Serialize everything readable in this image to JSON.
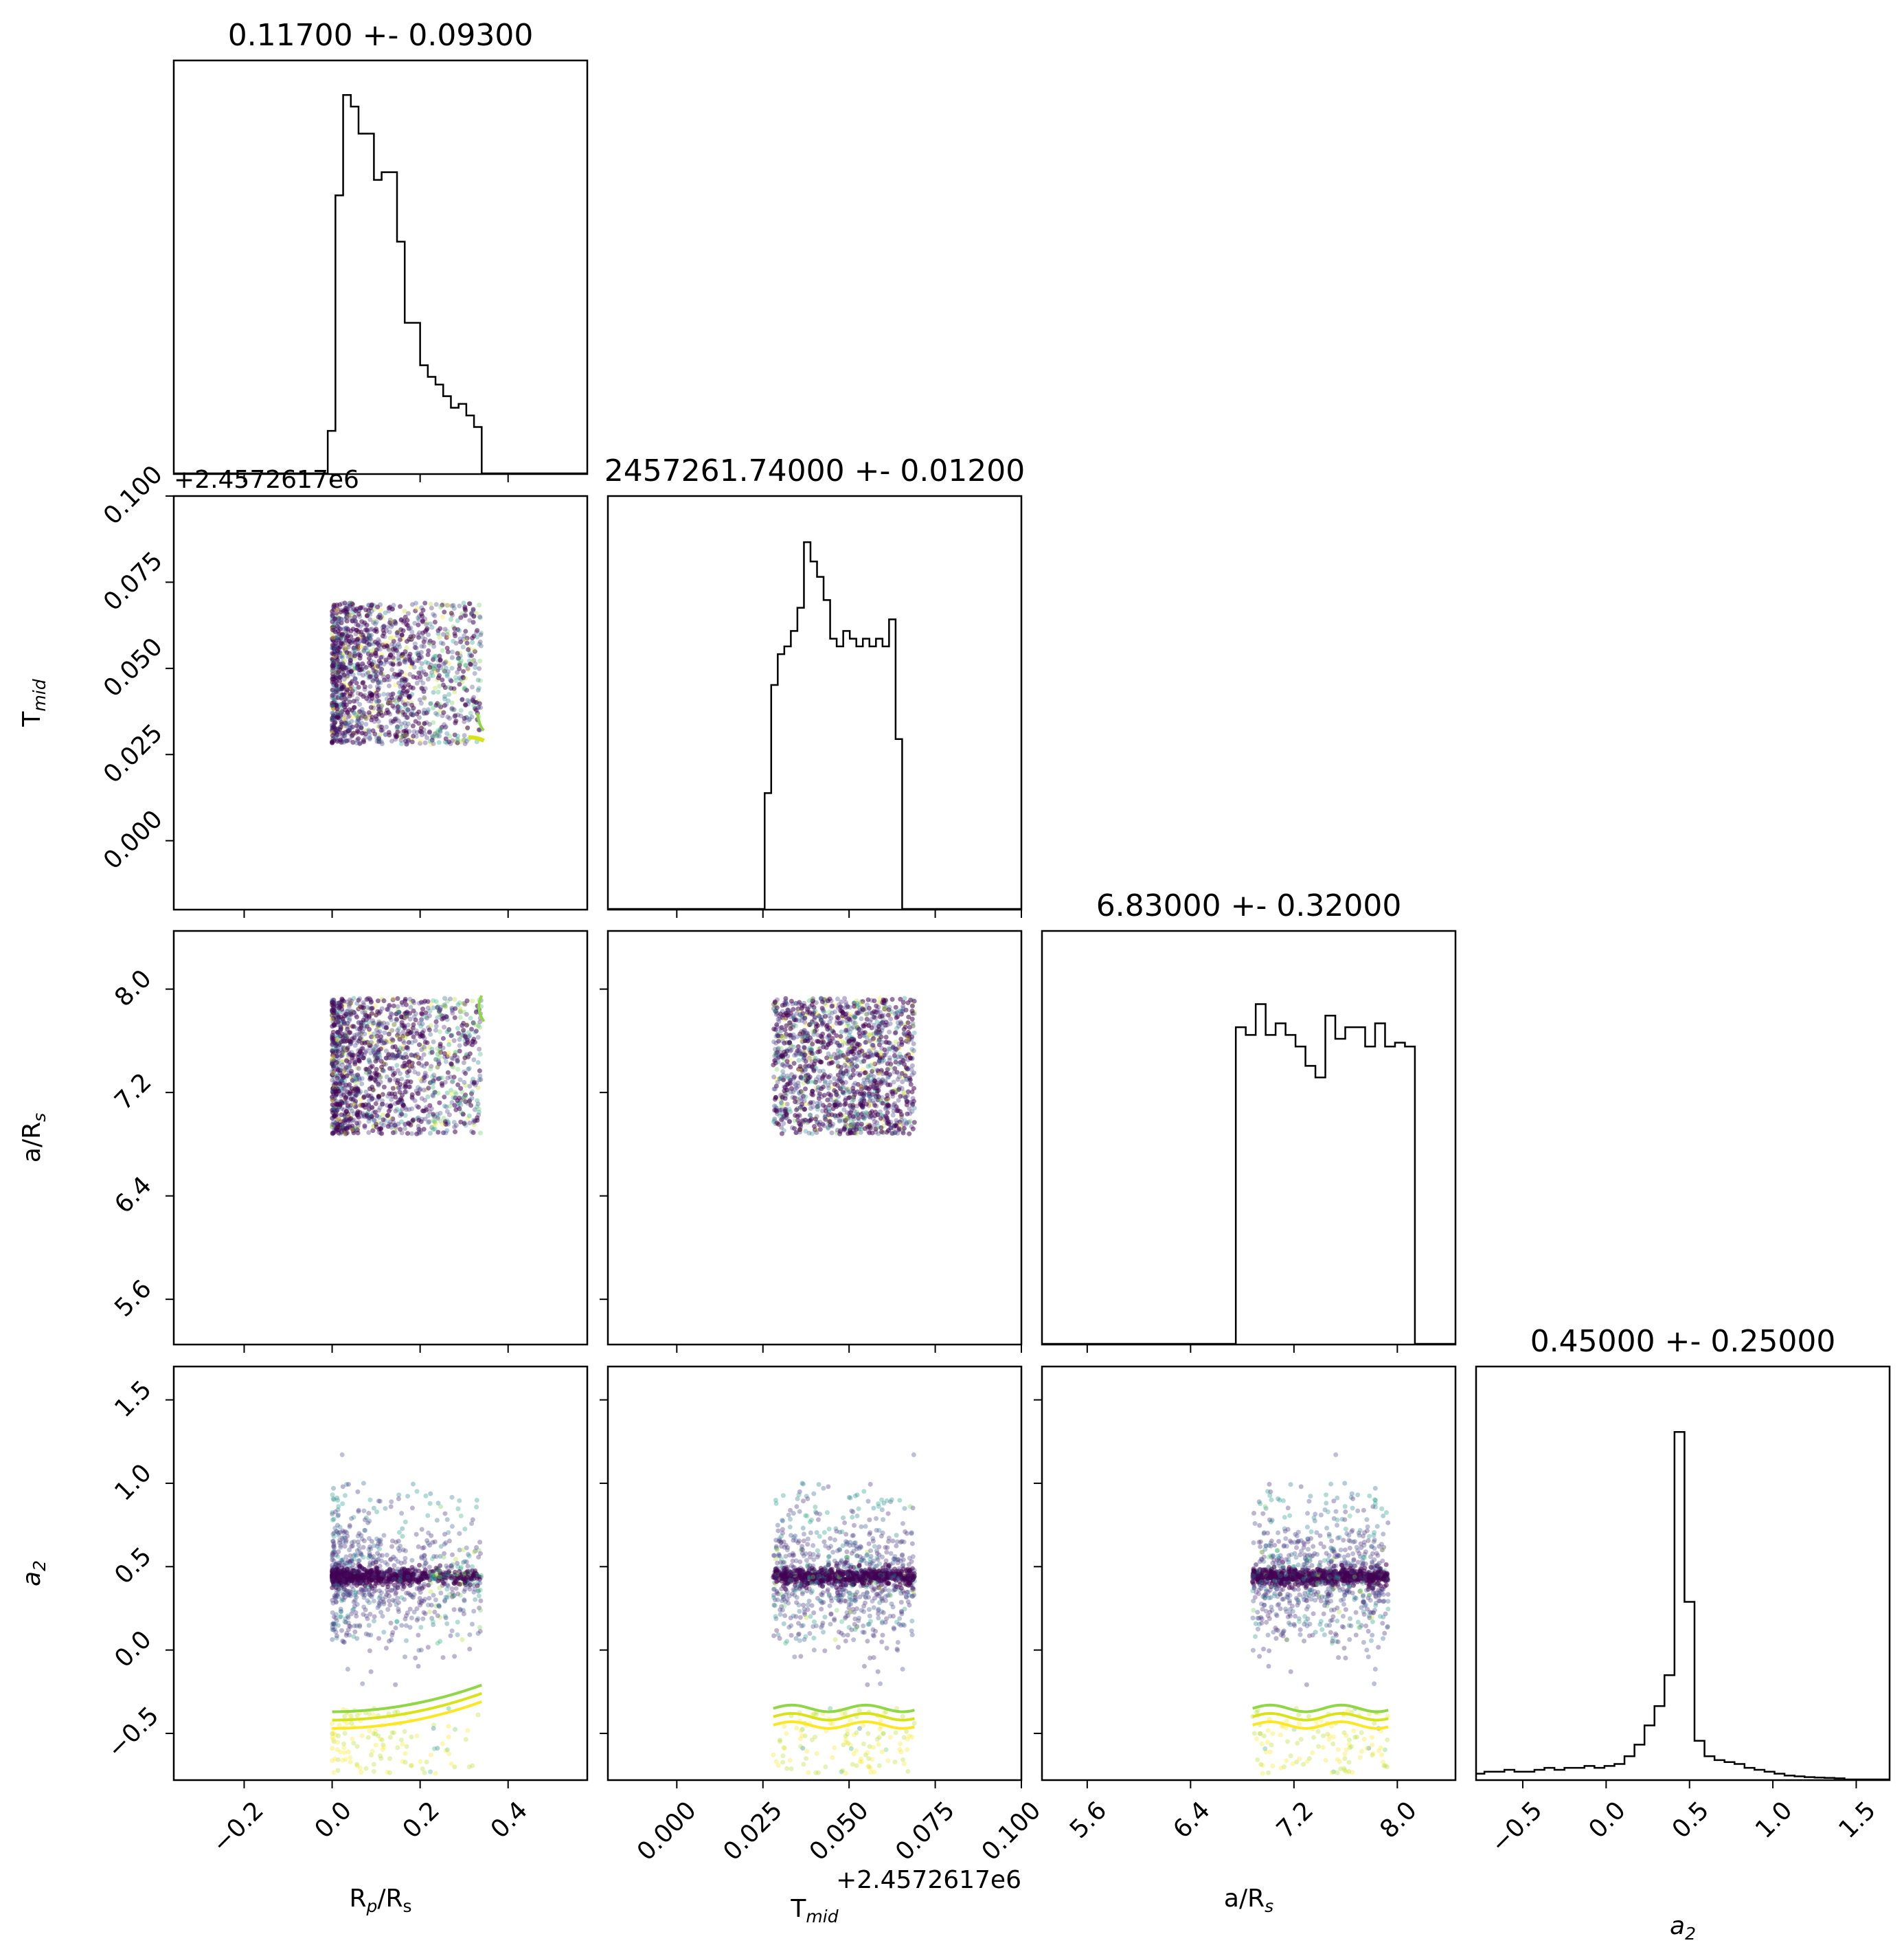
{
  "chart_data": {
    "type": "corner",
    "parameters": [
      {
        "key": "rprs",
        "label": "R",
        "label_sub": "p",
        "label_tail": "/R",
        "label_sub2": "s",
        "title": "0.11700 +- 0.09300",
        "range": [
          -0.36,
          0.58
        ],
        "ticks": [
          -0.2,
          0.0,
          0.2,
          0.4
        ],
        "tick_labels": [
          "−0.2",
          "0.0",
          "0.2",
          "0.4"
        ]
      },
      {
        "key": "tmid",
        "label": "T",
        "label_sub": "mid",
        "label_tail": "",
        "label_sub2": "",
        "title": "2457261.74000 +- 0.01200",
        "range": [
          -0.02,
          0.1
        ],
        "ticks": [
          0.0,
          0.025,
          0.05,
          0.075,
          0.1
        ],
        "tick_labels": [
          "0.000",
          "0.025",
          "0.050",
          "0.075",
          "0.100"
        ],
        "offset_text": "+2.4572617e6"
      },
      {
        "key": "ars",
        "label": "a/R",
        "label_sub": "s",
        "label_tail": "",
        "label_sub2": "",
        "title": "6.83000 +- 0.32000",
        "range": [
          5.25,
          8.45
        ],
        "ticks": [
          5.6,
          6.4,
          7.2,
          8.0
        ],
        "tick_labels": [
          "5.6",
          "6.4",
          "7.2",
          "8.0"
        ]
      },
      {
        "key": "a2",
        "label": "a",
        "label_sub": "2",
        "label_tail": "",
        "label_sub2": "",
        "label_italic": true,
        "title": "0.45000 +- 0.25000",
        "range": [
          -0.78,
          1.7
        ],
        "ticks": [
          -0.5,
          0.0,
          0.5,
          1.0,
          1.5
        ],
        "tick_labels": [
          "−0.5",
          "0.0",
          "0.5",
          "1.0",
          "1.5"
        ]
      }
    ],
    "histograms": {
      "rprs": {
        "edges_start": -0.01,
        "bin_width": 0.0175,
        "counts": [
          0.11,
          0.72,
          0.98,
          0.95,
          0.88,
          0.88,
          0.76,
          0.78,
          0.78,
          0.6,
          0.39,
          0.39,
          0.28,
          0.25,
          0.23,
          0.2,
          0.17,
          0.18,
          0.15,
          0.12,
          0.0
        ]
      },
      "tmid": {
        "edges_start": 0.0255,
        "bin_width": 0.0019,
        "counts": [
          0.3,
          0.58,
          0.66,
          0.68,
          0.72,
          0.78,
          0.95,
          0.9,
          0.86,
          0.8,
          0.7,
          0.68,
          0.72,
          0.7,
          0.68,
          0.7,
          0.68,
          0.7,
          0.68,
          0.75,
          0.44
        ]
      },
      "ars": {
        "edges_start": 6.75,
        "bin_width": 0.077,
        "counts": [
          0.82,
          0.8,
          0.88,
          0.8,
          0.83,
          0.8,
          0.77,
          0.72,
          0.69,
          0.85,
          0.79,
          0.82,
          0.82,
          0.77,
          0.83,
          0.77,
          0.78,
          0.77,
          0.0
        ]
      },
      "a2": {
        "edges_start": -0.85,
        "bin_width": 0.06,
        "counts": [
          0.01,
          0.015,
          0.02,
          0.02,
          0.025,
          0.02,
          0.02,
          0.025,
          0.03,
          0.025,
          0.03,
          0.03,
          0.035,
          0.03,
          0.035,
          0.04,
          0.06,
          0.09,
          0.14,
          0.19,
          0.27,
          0.9,
          0.46,
          0.1,
          0.06,
          0.05,
          0.045,
          0.04,
          0.03,
          0.025,
          0.02,
          0.015,
          0.01,
          0.008,
          0.006,
          0.005,
          0.004,
          0.003
        ]
      }
    },
    "colormap": "viridis",
    "contour_colors": [
      "#8fd744",
      "#d8e219",
      "#fde725"
    ],
    "title": "",
    "xlabel": "",
    "ylabel": ""
  }
}
